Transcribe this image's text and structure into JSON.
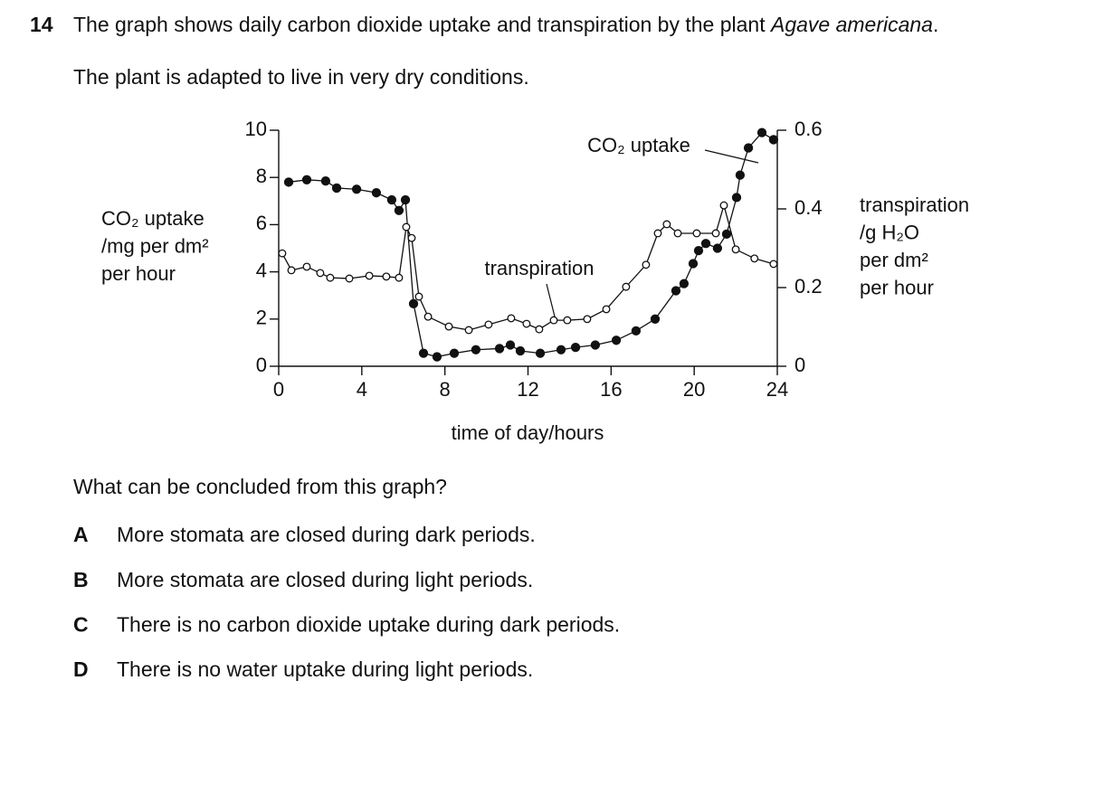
{
  "question": {
    "number": "14",
    "intro": "The graph shows daily carbon dioxide uptake and transpiration by the plant",
    "species": "Agave americana",
    "intro_end": ".",
    "context": "The plant is adapted to live in very dry conditions.",
    "prompt": "What can be concluded from this graph?",
    "options": [
      {
        "letter": "A",
        "text": "More stomata are closed during dark periods."
      },
      {
        "letter": "B",
        "text": "More stomata are closed during light periods."
      },
      {
        "letter": "C",
        "text": "There is no carbon dioxide uptake during dark periods."
      },
      {
        "letter": "D",
        "text": "There is no water uptake during light periods."
      }
    ]
  },
  "chart_data": {
    "type": "line",
    "xlabel": "time of day/hours",
    "ylabel": [
      "CO₂ uptake",
      "/mg per dm²",
      "per hour"
    ],
    "y2label": [
      "transpiration",
      "/g H₂O",
      "per dm²",
      "per hour"
    ],
    "xlim": [
      0,
      24
    ],
    "xticks": [
      0,
      4,
      8,
      12,
      16,
      20,
      24
    ],
    "ylim": [
      0,
      10
    ],
    "yticks": [
      0,
      2,
      4,
      6,
      8,
      10
    ],
    "y2lim": [
      0,
      0.6
    ],
    "y2ticks": [
      0,
      0.2,
      0.4,
      0.6
    ],
    "series": [
      {
        "name": "CO₂ uptake",
        "color": "#111111",
        "marker": "filled",
        "x": [
          0.48,
          1.35,
          2.26,
          2.79,
          3.75,
          4.7,
          5.44,
          5.79,
          6.1,
          6.49,
          6.97,
          7.62,
          8.45,
          9.49,
          10.63,
          11.15,
          11.63,
          12.59,
          13.59,
          14.29,
          15.24,
          16.25,
          17.2,
          18.12,
          19.12,
          19.51,
          19.95,
          20.21,
          20.56,
          21.12,
          21.56,
          22.04,
          22.21,
          22.61,
          23.26,
          23.82
        ],
        "values": [
          7.8,
          7.9,
          7.85,
          7.55,
          7.5,
          7.35,
          7.05,
          6.6,
          7.05,
          2.65,
          0.55,
          0.4,
          0.55,
          0.7,
          0.75,
          0.9,
          0.65,
          0.55,
          0.7,
          0.8,
          0.9,
          1.1,
          1.5,
          2.0,
          3.2,
          3.5,
          4.35,
          4.9,
          5.2,
          5.0,
          5.6,
          7.15,
          8.1,
          9.25,
          9.9,
          9.6
        ]
      },
      {
        "name": "transpiration",
        "color": "#111111",
        "marker": "open",
        "axis": "y2",
        "x": [
          0.17,
          0.61,
          1.35,
          2.0,
          2.48,
          3.4,
          4.36,
          5.18,
          5.79,
          6.14,
          6.4,
          6.75,
          7.19,
          8.19,
          9.15,
          10.1,
          11.19,
          11.93,
          12.54,
          13.24,
          13.89,
          14.85,
          15.77,
          16.72,
          17.68,
          18.25,
          18.68,
          19.21,
          20.12,
          21.04,
          21.43,
          22.0,
          22.9,
          23.82
        ],
        "values": [
          0.287,
          0.244,
          0.253,
          0.237,
          0.225,
          0.223,
          0.23,
          0.228,
          0.225,
          0.354,
          0.326,
          0.177,
          0.126,
          0.101,
          0.092,
          0.106,
          0.122,
          0.108,
          0.094,
          0.117,
          0.117,
          0.12,
          0.145,
          0.202,
          0.258,
          0.338,
          0.361,
          0.338,
          0.338,
          0.338,
          0.409,
          0.297,
          0.274,
          0.26
        ]
      }
    ]
  }
}
